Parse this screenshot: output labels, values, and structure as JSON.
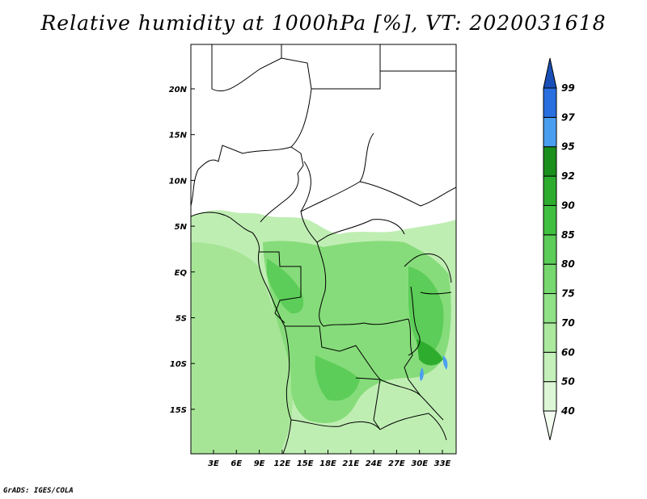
{
  "title": "Relative humidity at 1000hPa [%], VT: 2020031618",
  "footer": "GrADS: IGES/COLA",
  "chart_data": {
    "type": "heatmap",
    "variable": "Relative humidity",
    "level": "1000hPa",
    "unit": "%",
    "valid_time": "2020031618",
    "x_ticks": [
      "3E",
      "6E",
      "9E",
      "12E",
      "15E",
      "18E",
      "21E",
      "24E",
      "27E",
      "30E",
      "33E"
    ],
    "y_ticks": [
      "20N",
      "15N",
      "10N",
      "5N",
      "EQ",
      "5S",
      "10S",
      "15S"
    ],
    "colorbar": {
      "levels": [
        "40",
        "50",
        "60",
        "70",
        "75",
        "80",
        "85",
        "90",
        "92",
        "95",
        "97",
        "99"
      ],
      "colors": [
        "#f2fdf0",
        "#dcf7d6",
        "#c4f0ba",
        "#aae99e",
        "#8fe186",
        "#76d86e",
        "#5ccd58",
        "#40c040",
        "#2eac2e",
        "#1b8f1b",
        "#4a9ef0",
        "#2a6fe0",
        "#1a4fb8"
      ]
    }
  }
}
